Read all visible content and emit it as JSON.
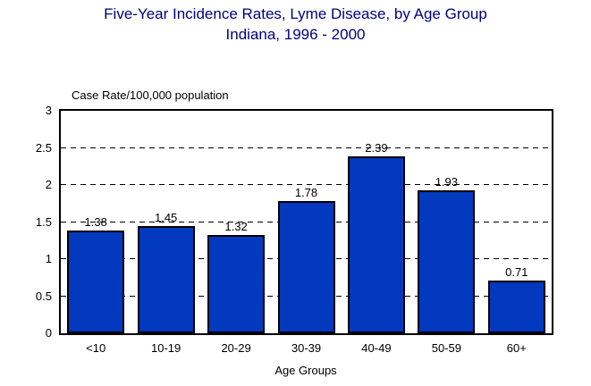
{
  "chart_data": {
    "type": "bar",
    "title": "Five-Year Incidence Rates, Lyme Disease, by Age Group",
    "subtitle": "Indiana, 1996 - 2000",
    "categories": [
      "<10",
      "10-19",
      "20-29",
      "30-39",
      "40-49",
      "50-59",
      "60+"
    ],
    "values": [
      1.38,
      1.45,
      1.32,
      1.78,
      2.39,
      1.93,
      0.71
    ],
    "value_labels": [
      "1.38",
      "1.45",
      "1.32",
      "1.78",
      "2.39",
      "1.93",
      "0.71"
    ],
    "xlabel": "Age Groups",
    "ylabel": "Case Rate/100,000 population",
    "ylim": [
      0,
      3
    ],
    "yticks": [
      0,
      0.5,
      1,
      1.5,
      2,
      2.5,
      3
    ],
    "grid": "horizontal-dashed",
    "legend": "none",
    "colors": {
      "bar_fill": "#0339be",
      "bar_border": "#000000",
      "title_color": "#000080",
      "axis_text": "#000000",
      "background": "#ffffff",
      "gridline": "#000000"
    }
  }
}
